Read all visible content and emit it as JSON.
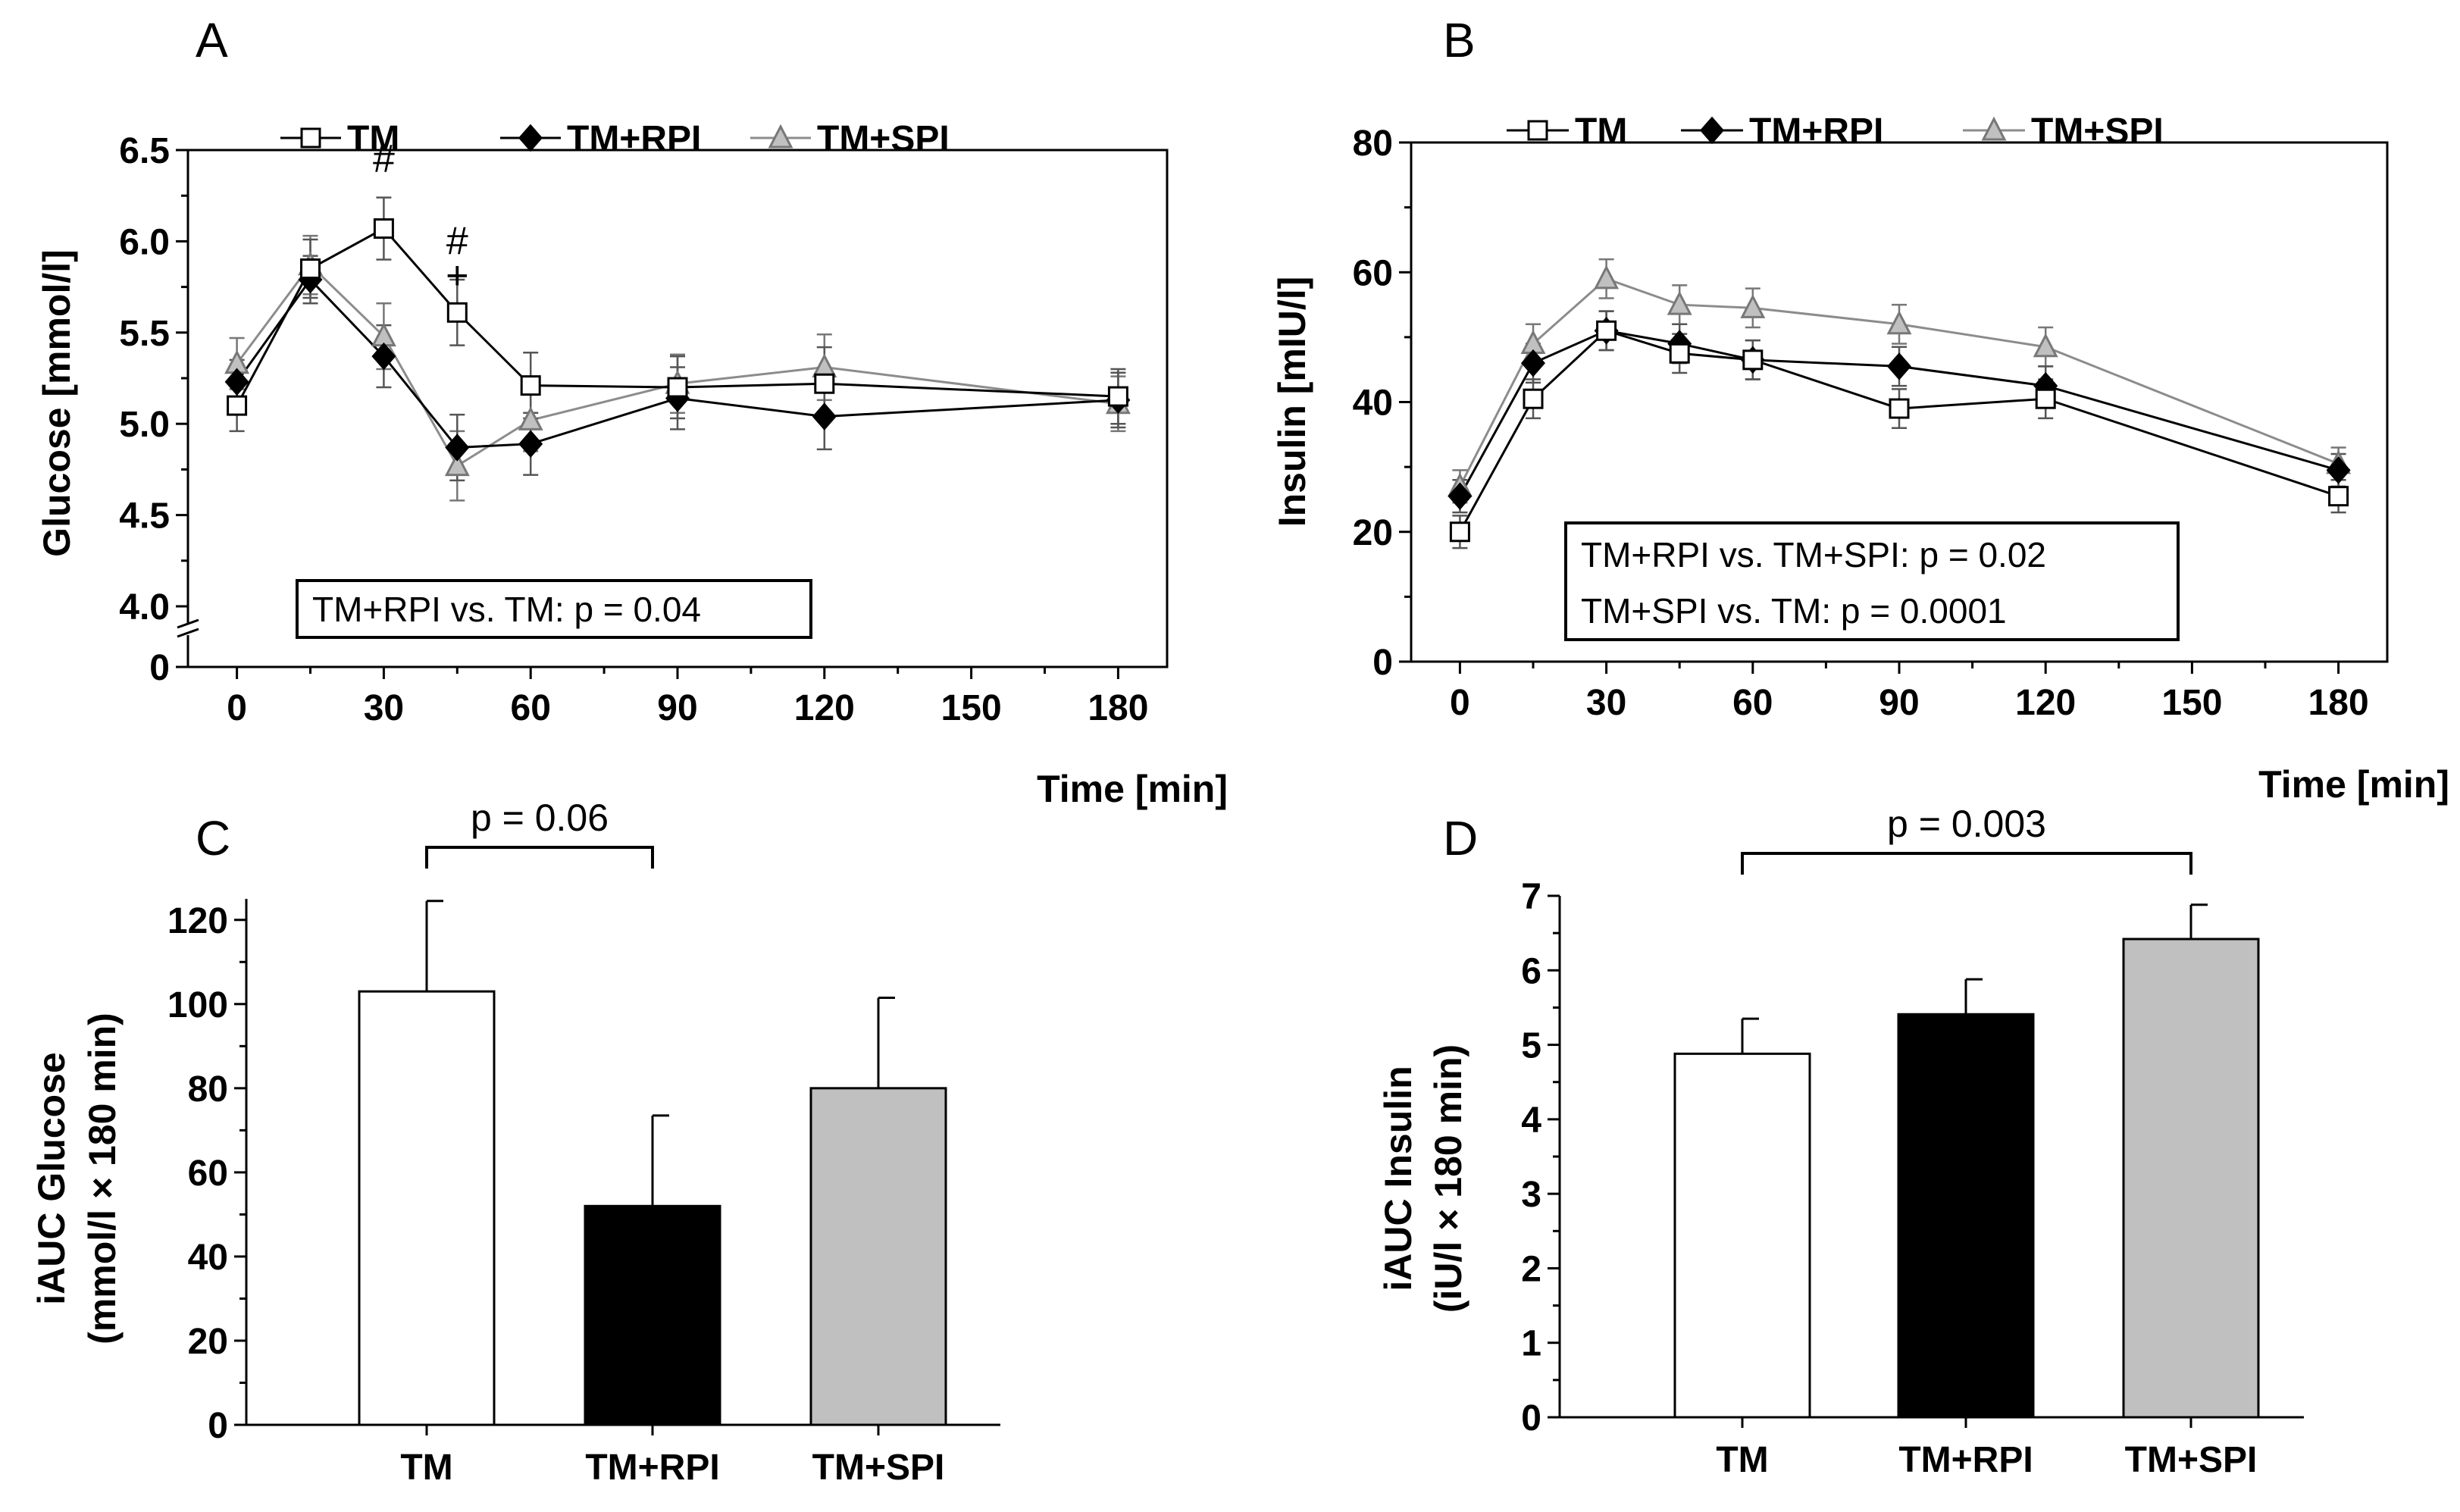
{
  "colors": {
    "TM_fill": "#ffffff",
    "RPI_fill": "#000000",
    "SPI_fill": "#c0c0c0",
    "TM_line": "#000000",
    "RPI_line": "#000000",
    "SPI_line": "#8c8c8c"
  },
  "chart_data": [
    {
      "panel": "A",
      "type": "line",
      "xlabel": "Time [min]",
      "ylabel": "Glucose [mmol/l]",
      "x_ticks": [
        "0",
        "30",
        "60",
        "90",
        "120",
        "150",
        "180"
      ],
      "y_ticks": [
        "4.0",
        "4.5",
        "5.0",
        "5.5",
        "6.0",
        "6.5"
      ],
      "y_zero_label": "0",
      "axis_break": true,
      "xlim": [
        -10,
        190
      ],
      "ylim": [
        4.0,
        6.5
      ],
      "grid": false,
      "legend_position": "top",
      "x": [
        0,
        15,
        30,
        45,
        60,
        90,
        120,
        180
      ],
      "series": [
        {
          "name": "TM",
          "marker": "square",
          "values": [
            5.1,
            5.85,
            6.07,
            5.61,
            5.21,
            5.2,
            5.22,
            5.15
          ],
          "errors": [
            0.14,
            0.16,
            0.17,
            0.18,
            0.18,
            0.17,
            0.2,
            0.15
          ]
        },
        {
          "name": "TM+RPI",
          "marker": "diamond",
          "values": [
            5.23,
            5.79,
            5.37,
            4.87,
            4.89,
            5.14,
            5.04,
            5.13
          ],
          "errors": [
            0.12,
            0.13,
            0.17,
            0.18,
            0.17,
            0.17,
            0.18,
            0.15
          ]
        },
        {
          "name": "TM+SPI",
          "marker": "triangle",
          "values": [
            5.33,
            5.87,
            5.48,
            4.77,
            5.02,
            5.22,
            5.31,
            5.11
          ],
          "errors": [
            0.14,
            0.16,
            0.18,
            0.19,
            0.17,
            0.16,
            0.18,
            0.15
          ]
        }
      ],
      "annotations": [
        {
          "text": "#",
          "x": 30,
          "y": 6.38
        },
        {
          "text": "#",
          "x": 45,
          "y": 5.93
        },
        {
          "text": "+",
          "x": 45,
          "y": 5.74
        }
      ],
      "stats_box": [
        "TM+RPI vs. TM:  p = 0.04"
      ]
    },
    {
      "panel": "B",
      "type": "line",
      "xlabel": "Time [min]",
      "ylabel": "Insulin [mIU/l]",
      "x_ticks": [
        "0",
        "30",
        "60",
        "90",
        "120",
        "150",
        "180"
      ],
      "y_ticks": [
        "0",
        "20",
        "40",
        "60",
        "80"
      ],
      "xlim": [
        -10,
        190
      ],
      "ylim": [
        0,
        80
      ],
      "grid": false,
      "legend_position": "top",
      "x": [
        0,
        15,
        30,
        45,
        60,
        90,
        120,
        180
      ],
      "series": [
        {
          "name": "TM",
          "marker": "square",
          "values": [
            20,
            40.5,
            51,
            47.5,
            46.5,
            39,
            40.5,
            25.5
          ],
          "errors": [
            2.5,
            3,
            3,
            3,
            3,
            3,
            3,
            2.5
          ]
        },
        {
          "name": "TM+RPI",
          "marker": "diamond",
          "values": [
            25.5,
            46,
            51,
            49,
            46.5,
            45.5,
            42.5,
            29.5
          ],
          "errors": [
            2.5,
            3,
            3,
            3,
            3,
            3,
            3,
            2.5
          ]
        },
        {
          "name": "TM+SPI",
          "marker": "triangle",
          "values": [
            27,
            49,
            59,
            55,
            54.5,
            52,
            48.5,
            30.5
          ],
          "errors": [
            2.5,
            3,
            3,
            3,
            3,
            3,
            3,
            2.5
          ]
        }
      ],
      "stats_box": [
        "TM+RPI vs. TM+SPI:  p = 0.02",
        "TM+SPI vs.  TM: p = 0.0001"
      ]
    },
    {
      "panel": "C",
      "type": "bar",
      "categories": [
        "TM",
        "TM+RPI",
        "TM+SPI"
      ],
      "ylabel_line1": "iAUC Glucose",
      "ylabel_line2": "(mmol/l × 180 min)",
      "y_ticks": [
        "0",
        "20",
        "40",
        "60",
        "80",
        "100",
        "120"
      ],
      "ylim": [
        0,
        125
      ],
      "values": [
        103,
        52,
        80
      ],
      "errors": [
        21.5,
        21.5,
        21.5
      ],
      "bracket": {
        "from": 0,
        "to": 1,
        "text": "p = 0.06"
      }
    },
    {
      "panel": "D",
      "type": "bar",
      "categories": [
        "TM",
        "TM+RPI",
        "TM+SPI"
      ],
      "ylabel_line1": "iAUC Insulin",
      "ylabel_line2": "(iU/l × 180 min)",
      "y_ticks": [
        "0",
        "1",
        "2",
        "3",
        "4",
        "5",
        "6",
        "7"
      ],
      "ylim": [
        0,
        7
      ],
      "values": [
        4.88,
        5.41,
        6.42
      ],
      "errors": [
        0.47,
        0.47,
        0.46
      ],
      "bracket": {
        "from": 0,
        "to": 2,
        "text": "p = 0.003"
      }
    }
  ]
}
